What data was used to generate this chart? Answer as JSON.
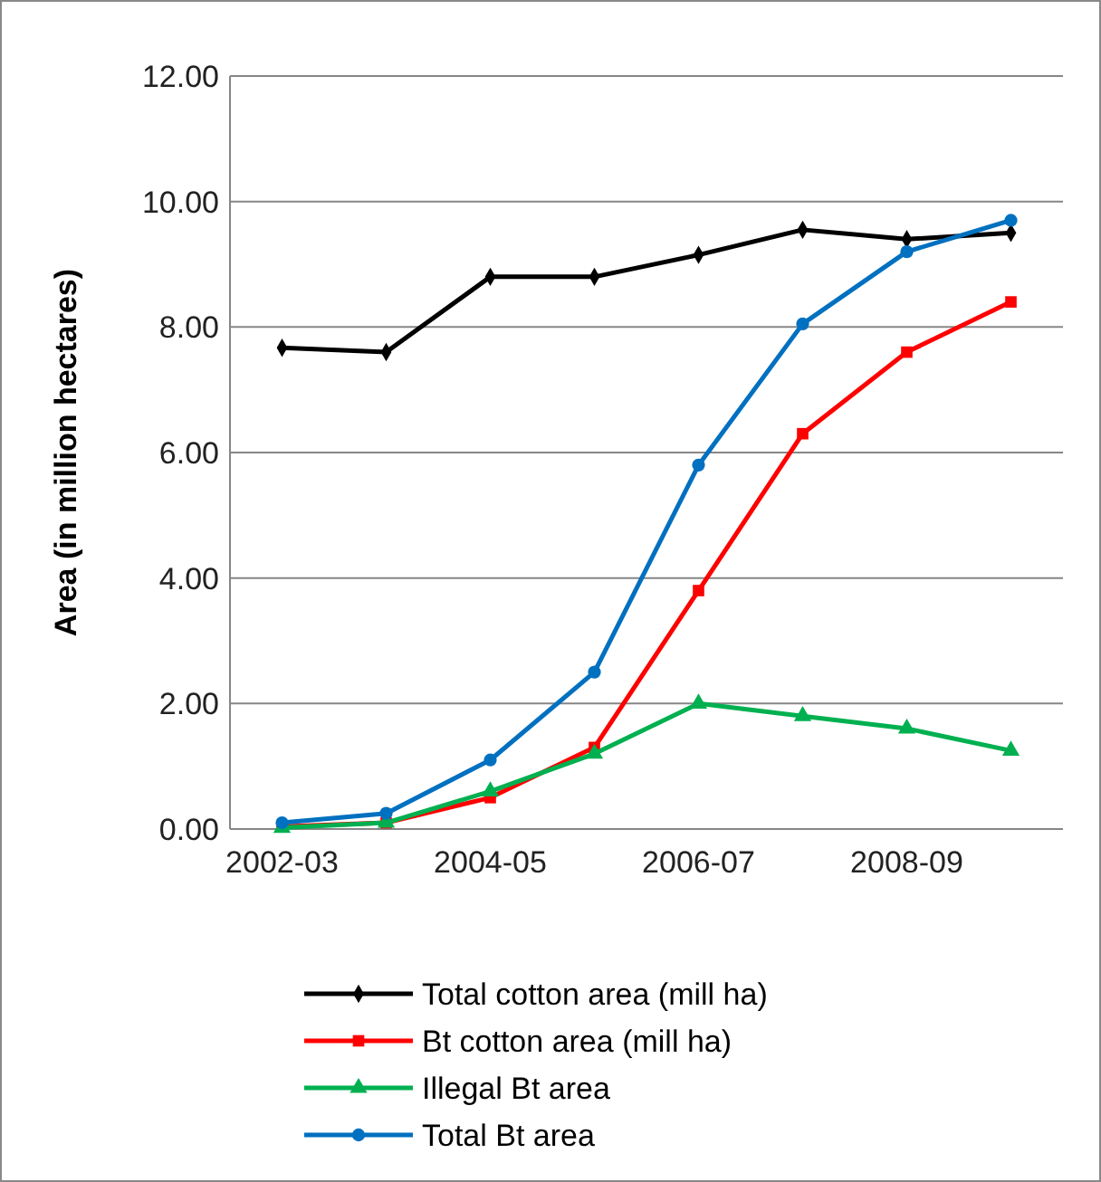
{
  "chart_data": {
    "type": "line",
    "ylabel": "Area (in million hectares)",
    "categories": [
      "2002-03",
      null,
      "2004-05",
      null,
      "2006-07",
      null,
      "2008-09",
      null
    ],
    "ylim": [
      0,
      12
    ],
    "yticks": [
      {
        "value": 0,
        "label": "0.00"
      },
      {
        "value": 2,
        "label": "2.00"
      },
      {
        "value": 4,
        "label": "4.00"
      },
      {
        "value": 6,
        "label": "6.00"
      },
      {
        "value": 8,
        "label": "8.00"
      },
      {
        "value": 10,
        "label": "10.00"
      },
      {
        "value": 12,
        "label": "12.00"
      }
    ],
    "grid": "y",
    "legend": "bottom",
    "line_style": "solid",
    "series": [
      {
        "name": "Total cotton area (mill ha)",
        "color": "#000000",
        "marker": "diamond",
        "values": [
          7.67,
          7.6,
          8.8,
          8.8,
          9.15,
          9.55,
          9.4,
          9.5
        ]
      },
      {
        "name": "Bt cotton area (mill ha)",
        "color": "#ff0000",
        "marker": "square",
        "values": [
          0.04,
          0.1,
          0.5,
          1.3,
          3.8,
          6.3,
          7.6,
          8.4
        ]
      },
      {
        "name": "Illegal Bt area",
        "color": "#00b050",
        "marker": "triangle",
        "values": [
          0.02,
          0.1,
          0.6,
          1.2,
          2.0,
          1.8,
          1.6,
          1.25
        ]
      },
      {
        "name": "Total Bt area",
        "color": "#0070c0",
        "marker": "circle",
        "values": [
          0.1,
          0.25,
          1.1,
          2.5,
          5.8,
          8.05,
          9.2,
          9.7
        ]
      }
    ]
  }
}
